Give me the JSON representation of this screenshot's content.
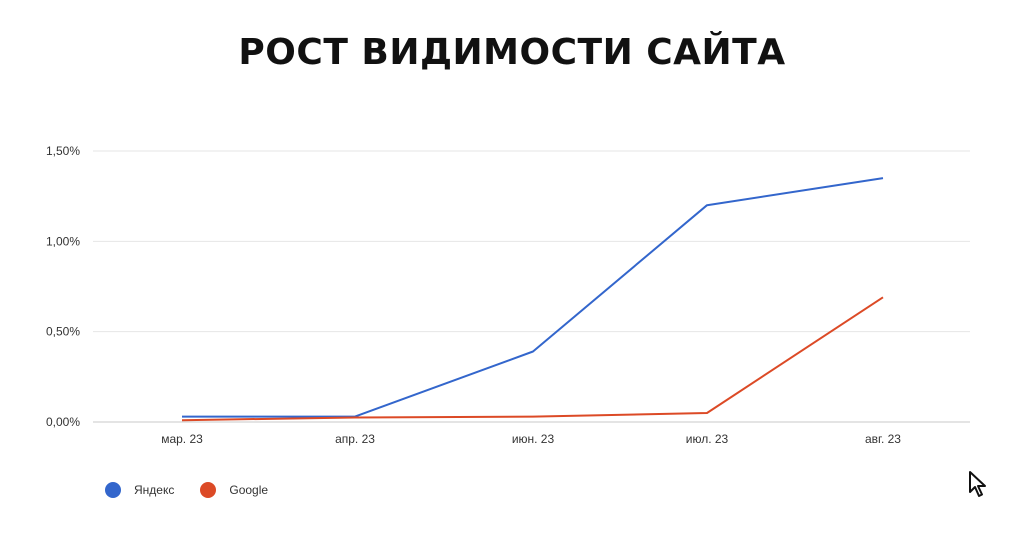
{
  "chart_data": {
    "type": "line",
    "title": "РОСТ ВИДИМОСТИ САЙТА",
    "categories": [
      "мар. 23",
      "апр. 23",
      "июн. 23",
      "июл. 23",
      "авг. 23"
    ],
    "y_ticks": [
      "0,00%",
      "0,50%",
      "1,00%",
      "1,50%"
    ],
    "ylim": [
      0,
      1.5
    ],
    "grid": true,
    "legend_position": "bottom-left",
    "series": [
      {
        "name": "Яндекс",
        "color": "#3366cc",
        "values": [
          0.03,
          0.03,
          0.39,
          1.2,
          1.35
        ]
      },
      {
        "name": "Google",
        "color": "#dc4a26",
        "values": [
          0.01,
          0.025,
          0.03,
          0.05,
          0.69
        ]
      }
    ]
  },
  "cursor": {
    "icon": "mouse-pointer-icon"
  }
}
